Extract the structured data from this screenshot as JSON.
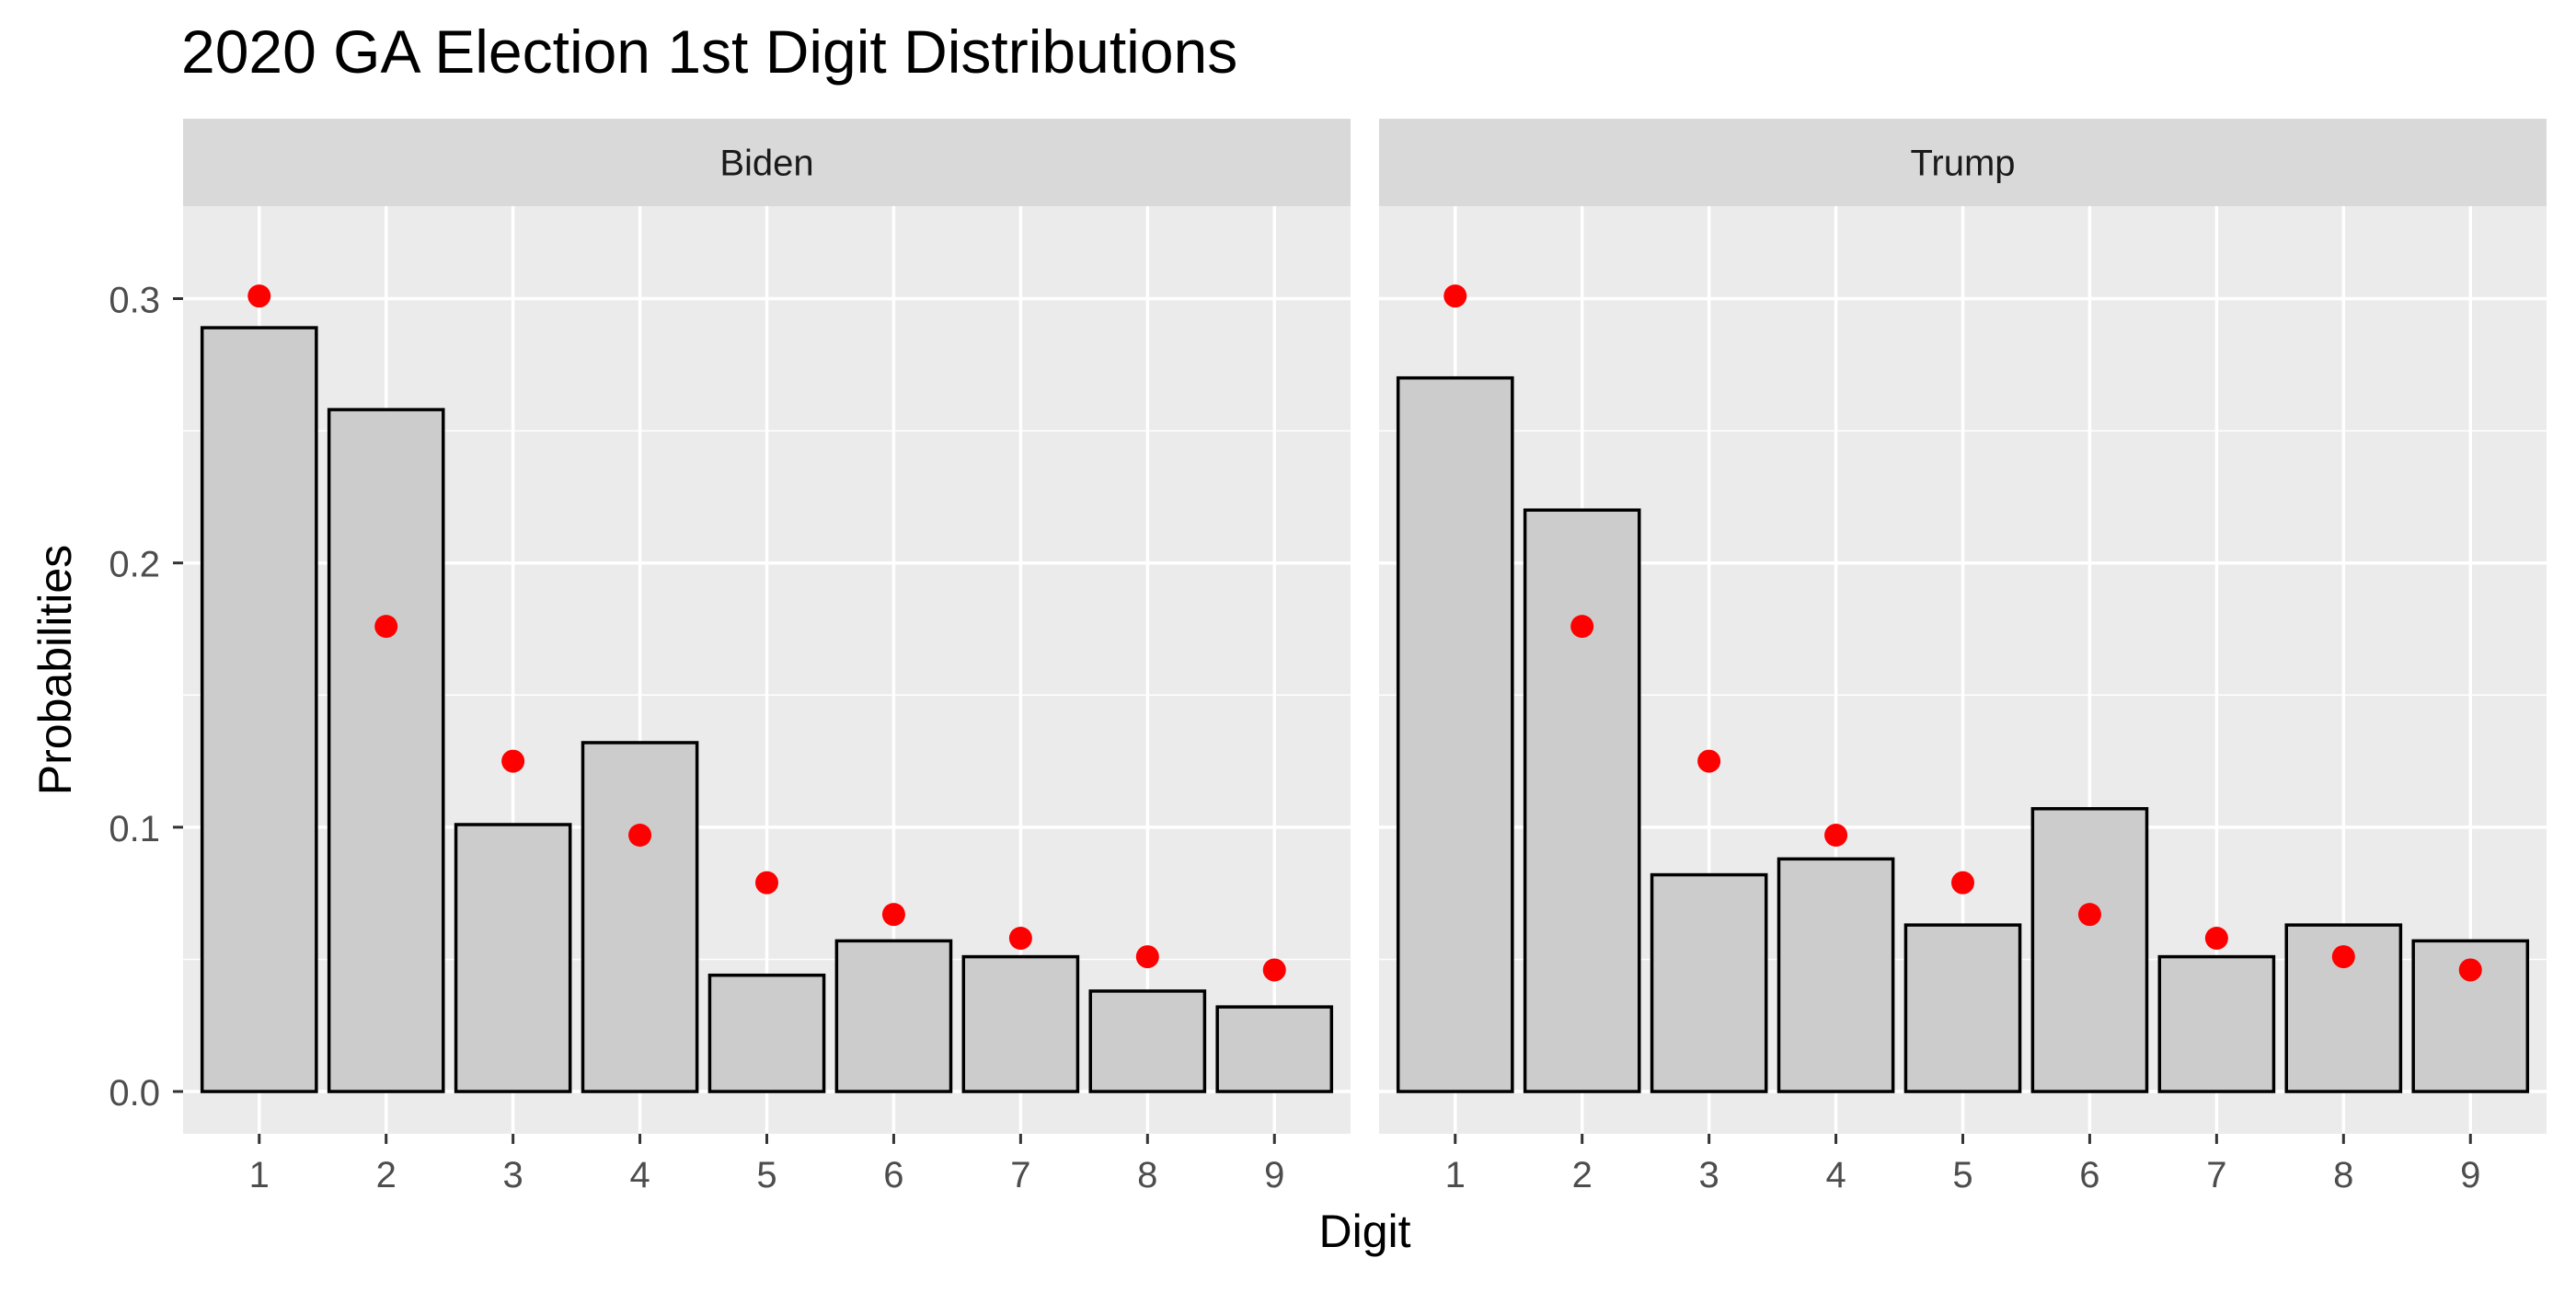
{
  "chart_data": {
    "type": "bar",
    "title": "2020 GA Election 1st Digit Distributions",
    "xlabel": "Digit",
    "ylabel": "Probabilities",
    "categories": [
      "1",
      "2",
      "3",
      "4",
      "5",
      "6",
      "7",
      "8",
      "9"
    ],
    "y_ticks": [
      "0.0",
      "0.1",
      "0.2",
      "0.3"
    ],
    "y_tick_values": [
      0.0,
      0.1,
      0.2,
      0.3
    ],
    "ylim": [
      -0.016,
      0.335
    ],
    "grid": true,
    "facets": [
      {
        "name": "Biden",
        "values": [
          0.289,
          0.258,
          0.101,
          0.132,
          0.044,
          0.057,
          0.051,
          0.038,
          0.032
        ]
      },
      {
        "name": "Trump",
        "values": [
          0.27,
          0.22,
          0.082,
          0.088,
          0.063,
          0.107,
          0.051,
          0.063,
          0.057
        ]
      }
    ],
    "reference_points": {
      "values": [
        0.301,
        0.176,
        0.125,
        0.097,
        0.079,
        0.067,
        0.058,
        0.051,
        0.046
      ]
    },
    "colors": {
      "panel_background": "#EBEBEB",
      "strip_background": "#D9D9D9",
      "gridline": "#FFFFFF",
      "bar_fill": "#CCCCCC",
      "bar_stroke": "#000000",
      "point": "#FF0000",
      "text": "#000000",
      "tick_text": "#4D4D4D"
    }
  }
}
